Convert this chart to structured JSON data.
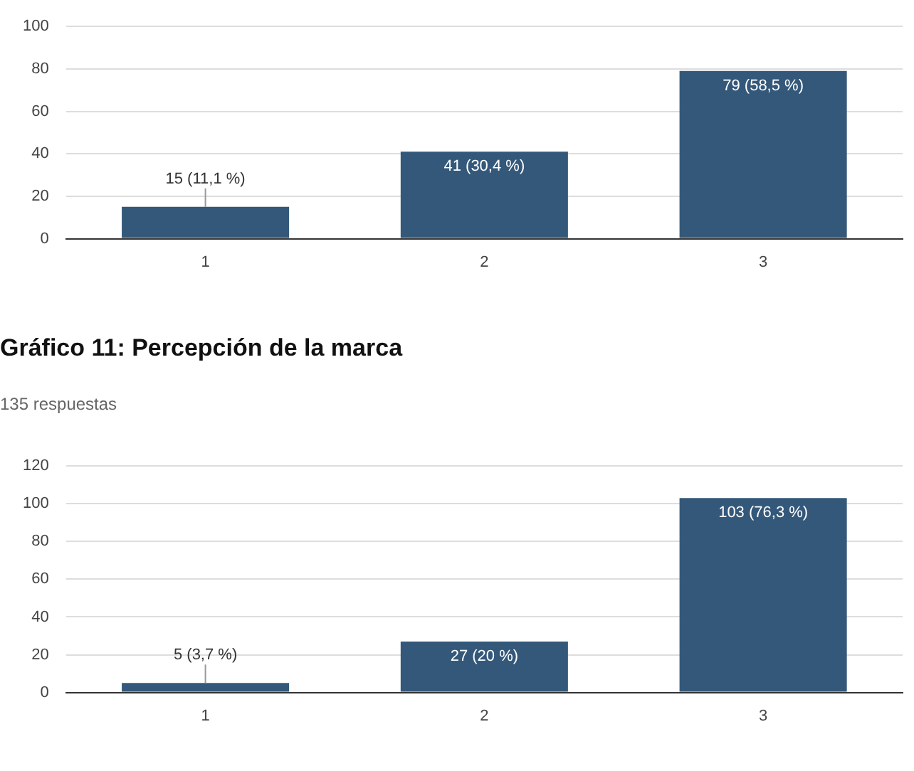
{
  "chart_data": [
    {
      "type": "bar",
      "categories": [
        "1",
        "2",
        "3"
      ],
      "values": [
        15,
        41,
        79
      ],
      "value_labels": [
        "15 (11,1 %)",
        "41 (30,4 %)",
        "79 (58,5 %)"
      ],
      "color": "#34587a",
      "ylim": [
        0,
        100
      ],
      "yticks": [
        0,
        20,
        40,
        60,
        80,
        100
      ],
      "grid": "y",
      "legend": false
    },
    {
      "type": "bar",
      "title": "Gráfico 11: Percepción de la marca",
      "subtitle": "135 respuestas",
      "categories": [
        "1",
        "2",
        "3"
      ],
      "values": [
        5,
        27,
        103
      ],
      "value_labels": [
        "5 (3,7 %)",
        "27 (20 %)",
        "103 (76,3 %)"
      ],
      "color": "#34587a",
      "ylim": [
        0,
        120
      ],
      "yticks": [
        0,
        20,
        40,
        60,
        80,
        100,
        120
      ],
      "grid": "y",
      "legend": false
    }
  ]
}
